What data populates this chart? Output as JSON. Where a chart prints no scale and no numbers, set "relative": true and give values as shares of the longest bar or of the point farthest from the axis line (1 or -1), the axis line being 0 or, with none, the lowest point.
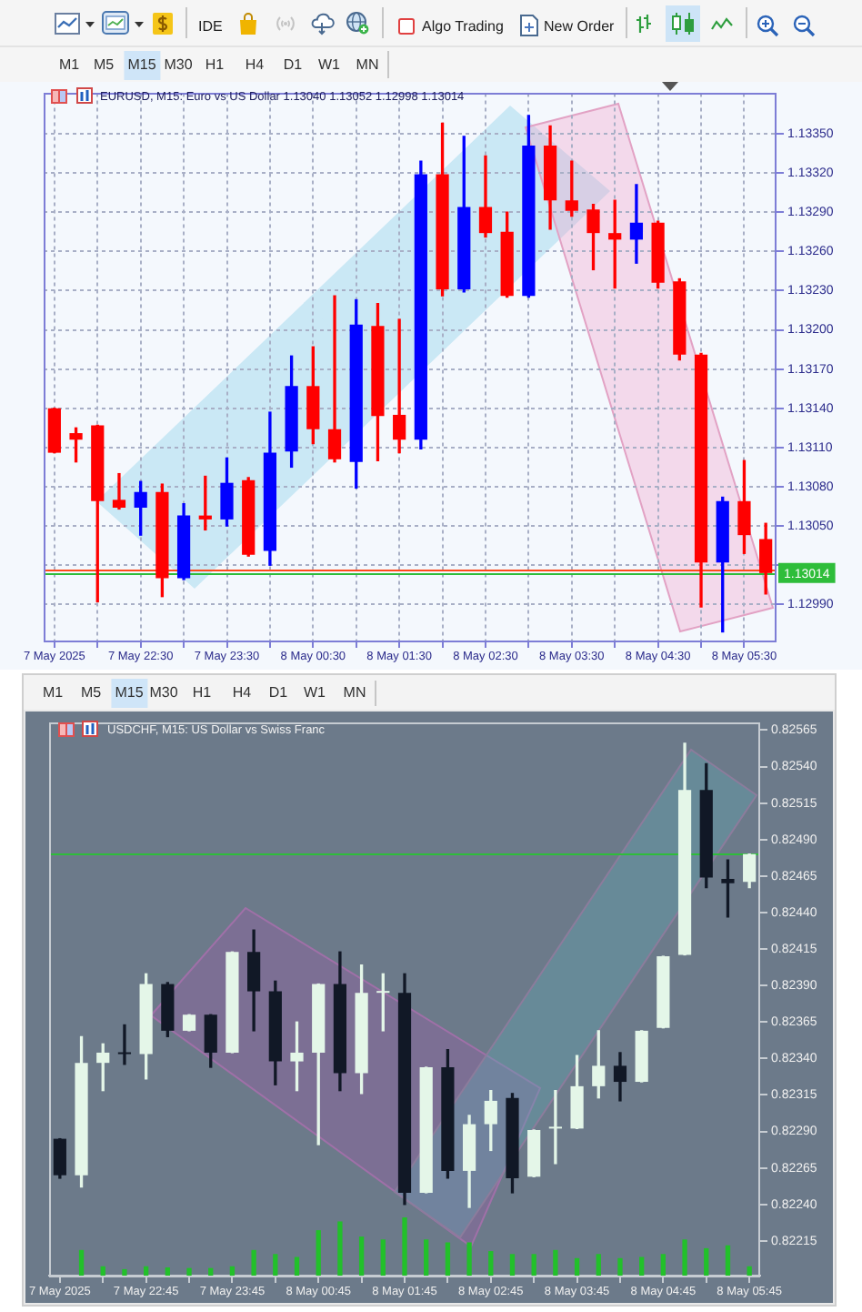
{
  "chart_data": [
    {
      "type": "candlestick",
      "title": "EURUSD, M15: Euro vs US Dollar 1.13040 1.13052 1.12998 1.13014",
      "categories": [
        "7 May 2025",
        null,
        null,
        null,
        "7 May 22:30",
        null,
        null,
        null,
        "7 May 23:30",
        null,
        null,
        null,
        "8 May 00:30",
        null,
        null,
        null,
        "8 May 01:30",
        null,
        null,
        null,
        "8 May 02:30",
        null,
        null,
        null,
        "8 May 03:30",
        null,
        null,
        null,
        "8 May 04:30",
        null,
        null,
        null,
        "8 May 05:30",
        null
      ],
      "ohlc": [
        [
          1.1314,
          1.1314,
          1.13106,
          1.13106
        ],
        [
          1.13121,
          1.13125,
          1.13099,
          1.13116
        ],
        [
          1.13127,
          1.13127,
          1.12992,
          1.13069
        ],
        [
          1.1307,
          1.1309,
          1.13063,
          1.13064
        ],
        [
          1.13064,
          1.13084,
          1.13043,
          1.13076
        ],
        [
          1.13076,
          1.13082,
          1.12996,
          1.1301
        ],
        [
          1.1301,
          1.13067,
          1.13009,
          1.13058
        ],
        [
          1.13058,
          1.13088,
          1.13047,
          1.13055
        ],
        [
          1.13055,
          1.13102,
          1.1305,
          1.13083
        ],
        [
          1.13085,
          1.13087,
          1.13027,
          1.13028
        ],
        [
          1.13031,
          1.13137,
          1.1302,
          1.13106
        ],
        [
          1.13107,
          1.1318,
          1.13095,
          1.13157
        ],
        [
          1.13157,
          1.13187,
          1.13113,
          1.13124
        ],
        [
          1.13124,
          1.13226,
          1.13099,
          1.13101
        ],
        [
          1.13099,
          1.13223,
          1.13079,
          1.13204
        ],
        [
          1.13203,
          1.1322,
          1.131,
          1.13134
        ],
        [
          1.13135,
          1.13208,
          1.13106,
          1.13116
        ],
        [
          1.13116,
          1.13329,
          1.13109,
          1.13319
        ],
        [
          1.13319,
          1.13358,
          1.13226,
          1.13231
        ],
        [
          1.13231,
          1.13348,
          1.13229,
          1.13294
        ],
        [
          1.13294,
          1.13333,
          1.13271,
          1.13274
        ],
        [
          1.13275,
          1.1329,
          1.13225,
          1.13226
        ],
        [
          1.13226,
          1.13364,
          1.13225,
          1.13341
        ],
        [
          1.13341,
          1.13356,
          1.13277,
          1.13299
        ],
        [
          1.13299,
          1.13329,
          1.13287,
          1.13291
        ],
        [
          1.13292,
          1.13296,
          1.13246,
          1.13274
        ],
        [
          1.13274,
          1.13299,
          1.13232,
          1.13269
        ],
        [
          1.13269,
          1.13311,
          1.13251,
          1.13282
        ],
        [
          1.13282,
          1.13283,
          1.13232,
          1.13236
        ],
        [
          1.13237,
          1.13239,
          1.13177,
          1.13181
        ],
        [
          1.13181,
          1.13182,
          1.12988,
          1.13022
        ],
        [
          1.13022,
          1.13072,
          1.12969,
          1.13069
        ],
        [
          1.13069,
          1.131,
          1.13029,
          1.13043
        ],
        [
          1.1304,
          1.13052,
          1.12998,
          1.13014
        ]
      ],
      "colors": [
        "#ff0000",
        "#ff0000",
        "#ff0000",
        "#ff0000",
        "#0000ff",
        "#ff0000",
        "#0000ff",
        "#ff0000",
        "#0000ff",
        "#ff0000",
        "#0000ff",
        "#0000ff",
        "#ff0000",
        "#ff0000",
        "#0000ff",
        "#ff0000",
        "#ff0000",
        "#0000ff",
        "#ff0000",
        "#0000ff",
        "#ff0000",
        "#ff0000",
        "#0000ff",
        "#ff0000",
        "#ff0000",
        "#ff0000",
        "#ff0000",
        "#0000ff",
        "#ff0000",
        "#ff0000",
        "#ff0000",
        "#0000ff",
        "#ff0000",
        "#ff0000"
      ],
      "ylim": [
        1.12961,
        1.13381
      ],
      "yticks": [
        {
          "value": 1.1299,
          "label": "1.12990"
        },
        {
          "value": 1.1302,
          "label": null
        },
        {
          "value": 1.1305,
          "label": "1.13050"
        },
        {
          "value": 1.1308,
          "label": "1.13080"
        },
        {
          "value": 1.1311,
          "label": "1.13110"
        },
        {
          "value": 1.1314,
          "label": "1.13140"
        },
        {
          "value": 1.1317,
          "label": "1.13170"
        },
        {
          "value": 1.132,
          "label": "1.13200"
        },
        {
          "value": 1.1323,
          "label": "1.13230"
        },
        {
          "value": 1.1326,
          "label": "1.13260"
        },
        {
          "value": 1.1329,
          "label": "1.13290"
        },
        {
          "value": 1.1332,
          "label": "1.13320"
        },
        {
          "value": 1.1335,
          "label": "1.13350"
        }
      ],
      "grid": true,
      "ref_lines": [
        {
          "axis": "y",
          "value": 1.13016,
          "color": "#ff4a1a"
        },
        {
          "axis": "y",
          "value": 1.13014,
          "label": "1.13014",
          "color": "#2ebd3a"
        }
      ],
      "annotations": [
        "IDE",
        "Algo Trading",
        "New Order",
        "M1",
        "M5",
        "M15",
        "M30",
        "H1",
        "H4",
        "D1",
        "W1",
        "MN"
      ]
    },
    {
      "type": "candlestick",
      "title": "USDCHF, M15: US Dollar vs Swiss Franc",
      "categories": [
        "7 May 2025",
        null,
        null,
        null,
        "7 May 22:45",
        null,
        null,
        null,
        "7 May 23:45",
        null,
        null,
        null,
        "8 May 00:45",
        null,
        null,
        null,
        "8 May 01:45",
        null,
        null,
        null,
        "8 May 02:45",
        null,
        null,
        null,
        "8 May 03:45",
        null,
        null,
        null,
        "8 May 04:45",
        null,
        null,
        null,
        "8 May 05:45"
      ],
      "ohlc": [
        [
          0.82285,
          0.82285,
          0.82258,
          0.8226
        ],
        [
          0.8226,
          0.82355,
          0.82252,
          0.82337
        ],
        [
          0.82337,
          0.8235,
          0.82318,
          0.82344
        ],
        [
          0.82344,
          0.82363,
          0.82336,
          0.82343
        ],
        [
          0.82343,
          0.82398,
          0.82326,
          0.82391
        ],
        [
          0.82391,
          0.82392,
          0.82355,
          0.82359
        ],
        [
          0.82359,
          0.8237,
          0.82359,
          0.8237
        ],
        [
          0.8237,
          0.8237,
          0.82334,
          0.82344
        ],
        [
          0.82344,
          0.82413,
          0.82344,
          0.82413
        ],
        [
          0.82413,
          0.82428,
          0.82359,
          0.82386
        ],
        [
          0.82386,
          0.82393,
          0.82322,
          0.82338
        ],
        [
          0.82338,
          0.82365,
          0.82318,
          0.82344
        ],
        [
          0.82344,
          0.82391,
          0.82281,
          0.82391
        ],
        [
          0.82391,
          0.82413,
          0.82318,
          0.8233
        ],
        [
          0.8233,
          0.82404,
          0.82316,
          0.82385
        ],
        [
          0.82385,
          0.82398,
          0.82359,
          0.82386
        ],
        [
          0.82385,
          0.82398,
          0.8224,
          0.82248
        ],
        [
          0.82248,
          0.82334,
          0.82248,
          0.82334
        ],
        [
          0.82334,
          0.82346,
          0.82258,
          0.82263
        ],
        [
          0.82263,
          0.82301,
          0.82238,
          0.82295
        ],
        [
          0.82295,
          0.82318,
          0.82277,
          0.82311
        ],
        [
          0.82313,
          0.82316,
          0.82248,
          0.82258
        ],
        [
          0.82259,
          0.82291,
          0.82259,
          0.82291
        ],
        [
          0.82292,
          0.82318,
          0.82268,
          0.82293
        ],
        [
          0.82292,
          0.82342,
          0.82292,
          0.82321
        ],
        [
          0.82321,
          0.82359,
          0.82313,
          0.82335
        ],
        [
          0.82335,
          0.82344,
          0.82311,
          0.82324
        ],
        [
          0.82324,
          0.82359,
          0.82324,
          0.82359
        ],
        [
          0.82361,
          0.8241,
          0.82361,
          0.8241
        ],
        [
          0.82411,
          0.82556,
          0.82411,
          0.82524
        ],
        [
          0.82524,
          0.82542,
          0.82457,
          0.82464
        ],
        [
          0.82463,
          0.82476,
          0.82437,
          0.8246
        ],
        [
          0.82461,
          0.8248,
          0.82457,
          0.8248
        ]
      ],
      "colors": [
        "#111826",
        "#e4f6e8",
        "#e4f6e8",
        "#111826",
        "#e4f6e8",
        "#111826",
        "#e4f6e8",
        "#111826",
        "#e4f6e8",
        "#111826",
        "#111826",
        "#e4f6e8",
        "#e4f6e8",
        "#111826",
        "#e4f6e8",
        "#e4f6e8",
        "#111826",
        "#e4f6e8",
        "#111826",
        "#e4f6e8",
        "#e4f6e8",
        "#111826",
        "#e4f6e8",
        "#e4f6e8",
        "#e4f6e8",
        "#e4f6e8",
        "#111826",
        "#e4f6e8",
        "#e4f6e8",
        "#e4f6e8",
        "#111826",
        "#111826",
        "#e4f6e8"
      ],
      "ylim": [
        0.8219,
        0.8257
      ],
      "yticks": [
        {
          "value": 0.82215,
          "label": "0.82215"
        },
        {
          "value": 0.8224,
          "label": "0.82240"
        },
        {
          "value": 0.82265,
          "label": "0.82265"
        },
        {
          "value": 0.8229,
          "label": "0.82290"
        },
        {
          "value": 0.82315,
          "label": "0.82315"
        },
        {
          "value": 0.8234,
          "label": "0.82340"
        },
        {
          "value": 0.82365,
          "label": "0.82365"
        },
        {
          "value": 0.8239,
          "label": "0.82390"
        },
        {
          "value": 0.82415,
          "label": "0.82415"
        },
        {
          "value": 0.8244,
          "label": "0.82440"
        },
        {
          "value": 0.82465,
          "label": "0.82465"
        },
        {
          "value": 0.8249,
          "label": "0.82490"
        },
        {
          "value": 0.82515,
          "label": "0.82515"
        },
        {
          "value": 0.8254,
          "label": "0.82540"
        },
        {
          "value": 0.82565,
          "label": "0.82565"
        }
      ],
      "ref_lines": [
        {
          "axis": "y",
          "value": 0.82481,
          "color": "#2ebd3a"
        }
      ],
      "annotations": [
        "M1",
        "M5",
        "M15",
        "M30",
        "H1",
        "H4",
        "D1",
        "W1",
        "MN"
      ]
    },
    {
      "type": "bar",
      "relative": true,
      "color": "#22c02a",
      "categories": [
        null,
        null,
        null,
        null,
        null,
        null,
        null,
        null,
        null,
        null,
        null,
        null,
        null,
        null,
        null,
        null,
        null,
        null,
        null,
        null,
        null,
        null,
        null,
        null,
        null,
        null,
        null,
        null,
        null,
        null,
        null,
        null,
        null
      ],
      "values": [
        null,
        0.43,
        0.15,
        0.1,
        0.15,
        0.13,
        0.12,
        0.12,
        0.15,
        0.43,
        0.36,
        0.31,
        0.77,
        0.92,
        0.66,
        0.61,
        1,
        0.61,
        0.56,
        0.56,
        0.41,
        0.36,
        0.36,
        0.43,
        0.29,
        0.36,
        0.29,
        0.31,
        0.36,
        0.61,
        0.46,
        0.51,
        0.15
      ]
    }
  ]
}
